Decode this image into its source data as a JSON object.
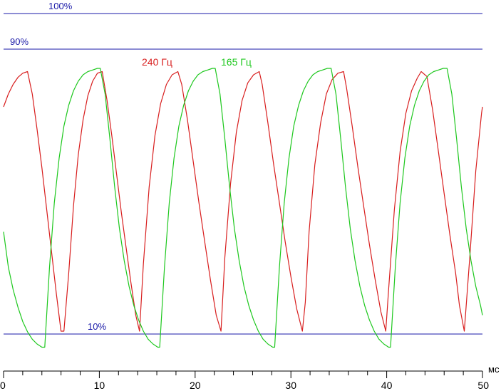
{
  "chart_data": {
    "type": "line",
    "x_unit_label": "мс",
    "xlim": [
      0,
      50
    ],
    "x_ticks": [
      0,
      10,
      20,
      30,
      40,
      50
    ],
    "x_minor_step": 2,
    "ylim": [
      0,
      100
    ],
    "reference_lines": [
      {
        "label": "100%",
        "value": 100,
        "color": "#1a1aa8"
      },
      {
        "label": "90%",
        "value": 90,
        "color": "#1a1aa8"
      },
      {
        "label": "10%",
        "value": 10,
        "color": "#1a1aa8"
      }
    ],
    "series": [
      {
        "name": "240 Гц",
        "color": "#d81e1e",
        "x": [
          0,
          0.5,
          1.0,
          1.5,
          2.0,
          2.5,
          3.0,
          3.5,
          4.0,
          4.5,
          5.0,
          5.5,
          6.0,
          6.3,
          6.8,
          7.3,
          7.8,
          8.3,
          8.8,
          9.3,
          9.8,
          10.3,
          10.8,
          11.3,
          11.8,
          12.3,
          12.8,
          13.3,
          13.8,
          14.2,
          14.6,
          15.2,
          15.8,
          16.4,
          17.0,
          17.6,
          18.2,
          18.6,
          19.2,
          19.8,
          20.4,
          21.0,
          21.6,
          22.2,
          22.7,
          23.1,
          23.7,
          24.3,
          24.9,
          25.5,
          26.1,
          26.7,
          27.0,
          27.6,
          28.2,
          28.8,
          29.4,
          30.0,
          30.6,
          31.2,
          31.5,
          31.9,
          32.5,
          33.1,
          33.7,
          34.3,
          34.9,
          35.5,
          35.8,
          36.4,
          37.0,
          37.6,
          38.2,
          38.8,
          39.4,
          39.9,
          40.2,
          40.8,
          41.4,
          42.0,
          42.6,
          43.2,
          43.6,
          44.2,
          44.8,
          45.4,
          46.0,
          46.6,
          47.2,
          47.6,
          48.1,
          48.7,
          49.3,
          49.9,
          50.0
        ],
        "y": [
          80.0,
          84.0,
          87.0,
          89.2,
          90.5,
          91.0,
          84.0,
          73.0,
          61.0,
          48.0,
          35.0,
          22.0,
          10.0,
          10.0,
          28.0,
          49.0,
          65.0,
          76.0,
          83.5,
          88.0,
          90.5,
          91.0,
          82.0,
          71.0,
          59.0,
          47.0,
          36.0,
          25.0,
          15.0,
          10.0,
          31.0,
          55.0,
          71.0,
          81.0,
          87.0,
          90.0,
          91.0,
          87.0,
          76.0,
          63.0,
          50.0,
          38.0,
          26.0,
          15.0,
          10.0,
          33.0,
          56.0,
          72.0,
          82.0,
          87.5,
          90.0,
          91.0,
          87.0,
          75.0,
          62.0,
          50.0,
          38.0,
          27.0,
          17.0,
          10.0,
          19.0,
          41.0,
          62.0,
          75.0,
          84.0,
          88.5,
          90.5,
          91.0,
          86.0,
          74.0,
          61.0,
          49.0,
          37.0,
          26.0,
          16.0,
          10.0,
          23.0,
          48.0,
          66.0,
          78.0,
          85.0,
          89.0,
          91.0,
          89.5,
          79.0,
          66.0,
          53.0,
          40.0,
          28.0,
          18.0,
          10.0,
          34.0,
          60.0,
          78.0,
          80.0
        ]
      },
      {
        "name": "165 Гц",
        "color": "#1ec81e",
        "x": [
          0,
          0.5,
          1.0,
          1.5,
          2.0,
          2.5,
          3.0,
          3.5,
          4.0,
          4.3,
          4.8,
          5.3,
          5.8,
          6.3,
          6.8,
          7.3,
          7.8,
          8.3,
          8.8,
          9.3,
          9.8,
          10.1,
          10.6,
          11.1,
          11.6,
          12.1,
          12.6,
          13.1,
          13.6,
          14.1,
          14.6,
          15.1,
          15.6,
          16.1,
          16.3,
          16.8,
          17.3,
          17.8,
          18.3,
          18.8,
          19.3,
          19.8,
          20.3,
          20.8,
          21.3,
          21.8,
          22.1,
          22.6,
          23.1,
          23.6,
          24.1,
          24.6,
          25.1,
          25.6,
          26.1,
          26.6,
          27.1,
          27.6,
          28.1,
          28.3,
          28.8,
          29.3,
          29.8,
          30.3,
          30.8,
          31.3,
          31.8,
          32.3,
          32.8,
          33.3,
          33.8,
          34.2,
          34.7,
          35.2,
          35.7,
          36.2,
          36.7,
          37.2,
          37.7,
          38.2,
          38.7,
          39.2,
          39.7,
          40.2,
          40.4,
          40.9,
          41.4,
          41.9,
          42.4,
          42.9,
          43.4,
          43.9,
          44.4,
          44.9,
          45.4,
          45.9,
          46.3,
          46.8,
          47.3,
          47.8,
          48.3,
          48.8,
          49.3,
          49.8,
          50.0
        ],
        "y": [
          41.0,
          30.0,
          23.0,
          17.5,
          13.0,
          9.8,
          7.5,
          6.0,
          5.0,
          5.0,
          30.0,
          50.0,
          64.0,
          74.0,
          80.5,
          85.0,
          88.0,
          90.0,
          91.0,
          91.5,
          92.0,
          92.0,
          84.0,
          70.0,
          55.0,
          42.0,
          32.0,
          24.0,
          18.0,
          13.5,
          10.0,
          7.5,
          6.0,
          5.0,
          5.0,
          30.0,
          50.0,
          64.0,
          74.0,
          80.5,
          85.0,
          88.0,
          90.0,
          91.0,
          91.5,
          92.0,
          92.0,
          84.0,
          70.0,
          55.0,
          42.0,
          32.0,
          24.0,
          18.0,
          13.5,
          10.0,
          7.5,
          6.0,
          5.0,
          5.0,
          30.0,
          50.0,
          64.0,
          74.0,
          80.5,
          85.0,
          88.0,
          90.0,
          91.0,
          91.5,
          92.0,
          92.0,
          84.0,
          70.0,
          55.0,
          42.0,
          32.0,
          24.0,
          18.0,
          13.5,
          10.0,
          7.5,
          6.0,
          5.0,
          5.0,
          30.0,
          50.0,
          64.0,
          74.0,
          80.5,
          85.0,
          88.0,
          90.0,
          91.0,
          91.5,
          92.0,
          92.0,
          84.0,
          70.0,
          55.0,
          42.0,
          32.0,
          24.0,
          18.0,
          15.0
        ]
      }
    ]
  }
}
